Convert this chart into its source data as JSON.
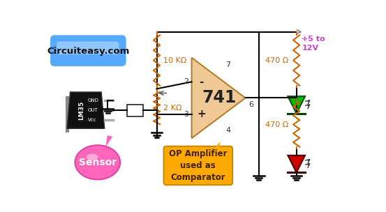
{
  "bg_color": "#ffffff",
  "website_label": "Circuiteasy.com",
  "sensor_label": "Sensor",
  "op_amp_label": "OP Amplifier\nused as\nComparator",
  "op_amp_number": "741",
  "resistor_10k": "10 KΩ",
  "resistor_2k": "2 KΩ",
  "resistor_470a": "470 Ω",
  "resistor_470b": "470 Ω",
  "supply_label": "+5 to\n12V",
  "supply_color": "#cc44cc",
  "op_amp_color": "#f0c896",
  "wire_color": "#000000",
  "pin2_label": "2",
  "pin3_label": "3",
  "pin4_label": "4",
  "pin6_label": "6",
  "pin7_label": "7",
  "minus_label": "-",
  "plus_label": "+",
  "resistor_color": "#cc6600",
  "ground_color": "#000000",
  "arrow_color": "#555555",
  "green_led_color": "#00bb00",
  "red_led_color": "#cc0000",
  "website_bg": "#55aaff",
  "sensor_color": "#ff66bb",
  "op_bubble_color": "#ffaa00"
}
